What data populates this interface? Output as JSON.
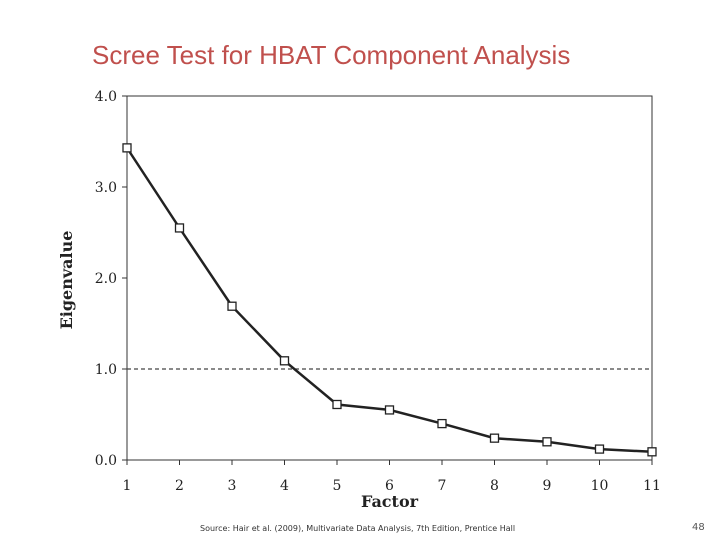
{
  "slide": {
    "title": "Scree Test for HBAT Component Analysis",
    "source": "Source: Hair et al. (2009), Multivariate Data Analysis, 7th Edition, Prentice Hall",
    "page_number": "48"
  },
  "colors": {
    "title": "#c0504d",
    "line": "#222222",
    "reference": "#444444"
  },
  "chart_data": {
    "type": "line",
    "title": "",
    "xlabel": "Factor",
    "ylabel": "Eigenvalue",
    "x": [
      1,
      2,
      3,
      4,
      5,
      6,
      7,
      8,
      9,
      10,
      11
    ],
    "series": [
      {
        "values": [
          3.43,
          2.55,
          1.69,
          1.09,
          0.61,
          0.55,
          0.4,
          0.24,
          0.2,
          0.12,
          0.09
        ],
        "marker": "open-square"
      }
    ],
    "xlim": [
      1,
      11
    ],
    "ylim": [
      0,
      4.0
    ],
    "x_ticks": [
      "1",
      "2",
      "3",
      "4",
      "5",
      "6",
      "7",
      "8",
      "9",
      "10",
      "11"
    ],
    "y_ticks": [
      "0.0",
      "1.0",
      "2.0",
      "3.0",
      "4.0"
    ],
    "reference_line": {
      "y": 1.0,
      "style": "dashed"
    },
    "grid": false,
    "legend": "none"
  }
}
